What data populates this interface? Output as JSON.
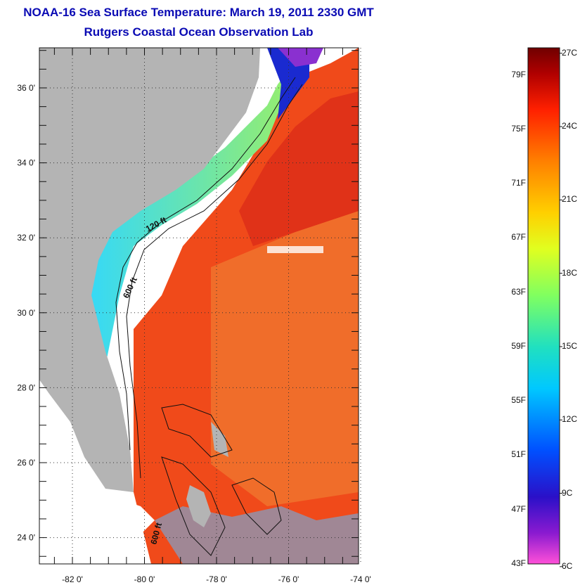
{
  "header": {
    "title": "NOAA-16 Sea Surface Temperature:  March 19, 2011 2330 GMT",
    "subtitle": "Rutgers Coastal Ocean Observation Lab"
  },
  "map": {
    "lat_ticks": [
      {
        "value": 36,
        "label": "36 0'"
      },
      {
        "value": 34,
        "label": "34 0'"
      },
      {
        "value": 32,
        "label": "32 0'"
      },
      {
        "value": 30,
        "label": "30 0'"
      },
      {
        "value": 28,
        "label": "28 0'"
      },
      {
        "value": 26,
        "label": "26 0'"
      },
      {
        "value": 24,
        "label": "24 0'"
      }
    ],
    "lon_ticks": [
      {
        "value": -82,
        "label": "-82 0'"
      },
      {
        "value": -80,
        "label": "-80 0'"
      },
      {
        "value": -78,
        "label": "-78 0'"
      },
      {
        "value": -76,
        "label": "-76 0'"
      },
      {
        "value": -74,
        "label": "-74 0'"
      }
    ],
    "isobaths": [
      {
        "label": "120 ft"
      },
      {
        "label": "600 ft"
      },
      {
        "label": "600 ft"
      }
    ],
    "colors": {
      "land": "#b4b4b4",
      "warm_water": "#f04a1a",
      "cool_water": "#43c8f0",
      "no_data": "#ffffff",
      "contour": "#111111"
    }
  },
  "colorbar": {
    "fahrenheit": [
      {
        "value": 79,
        "label": "79F"
      },
      {
        "value": 75,
        "label": "75F"
      },
      {
        "value": 71,
        "label": "71F"
      },
      {
        "value": 67,
        "label": "67F"
      },
      {
        "value": 63,
        "label": "63F"
      },
      {
        "value": 59,
        "label": "59F"
      },
      {
        "value": 55,
        "label": "55F"
      },
      {
        "value": 51,
        "label": "51F"
      },
      {
        "value": 47,
        "label": "47F"
      },
      {
        "value": 43,
        "label": "43F"
      }
    ],
    "celsius": [
      {
        "value": 27,
        "label": "27C"
      },
      {
        "value": 24,
        "label": "24C"
      },
      {
        "value": 21,
        "label": "21C"
      },
      {
        "value": 18,
        "label": "18C"
      },
      {
        "value": 15,
        "label": "15C"
      },
      {
        "value": 12,
        "label": "12C"
      },
      {
        "value": 9,
        "label": "9C"
      },
      {
        "value": 6,
        "label": "6C"
      }
    ],
    "range_f": [
      43,
      81
    ],
    "colors": [
      "#ff50d8",
      "#8a1ad0",
      "#2a10c8",
      "#0050ff",
      "#00c8ff",
      "#20e0c0",
      "#80ff60",
      "#e0ff20",
      "#ffd000",
      "#ff8000",
      "#ff2000",
      "#b00000",
      "#700000"
    ]
  }
}
